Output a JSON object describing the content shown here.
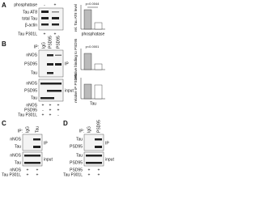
{
  "panels": {
    "a": {
      "label": "A",
      "treatment": "phosphatase",
      "treatment_values": [
        "-",
        "+"
      ],
      "rows": [
        "Tau AT8",
        "total Tau",
        "β-actin"
      ],
      "footer": "Tau P301L",
      "footer_values": [
        "+",
        "+"
      ],
      "chart": {
        "y_label": "rel. Tau AT8 level",
        "p_value": "p=0.0044",
        "x_label": "phosphatase"
      }
    },
    "b": {
      "label": "B",
      "ip_prefix": "IP:",
      "columns": [
        "IgG",
        "PSD95",
        "PSD95"
      ],
      "ip_rows": [
        "nNOS",
        "PSD95",
        "Tau"
      ],
      "ip_tag": "IP",
      "input_rows": [
        "nNOS",
        "PSD95",
        "Tau"
      ],
      "input_tag": "input",
      "footer": [
        {
          "name": "nNOS",
          "values": [
            "+",
            "+",
            "+"
          ]
        },
        {
          "name": "PSD95",
          "values": [
            "-",
            "+",
            "+"
          ]
        },
        {
          "name": "Tau P301L",
          "values": [
            "+",
            "+",
            "-"
          ]
        }
      ],
      "chart1": {
        "y_label": "relative binding to PSD95",
        "p_value": "p<0.0001"
      },
      "chart2": {
        "y_label": "relative IP PSD95",
        "x_label": "Tau"
      }
    },
    "c": {
      "label": "C",
      "ip_prefix": "IP:",
      "columns": [
        "IgG",
        "Tau"
      ],
      "ip_rows": [
        "nNOS",
        "Tau"
      ],
      "ip_tag": "IP",
      "input_rows": [
        "nNOS",
        "Tau"
      ],
      "input_tag": "input",
      "footer": [
        {
          "name": "nNOS",
          "values": [
            "+",
            "+"
          ]
        },
        {
          "name": "Tau P301L",
          "values": [
            "+",
            "+"
          ]
        }
      ]
    },
    "d": {
      "label": "D",
      "ip_prefix": "IP:",
      "columns": [
        "IgG",
        "PSD95"
      ],
      "ip_rows": [
        "Tau",
        "PSD95"
      ],
      "ip_tag": "IP",
      "input_rows": [
        "Tau",
        "PSD95"
      ],
      "input_tag": "input",
      "footer": [
        {
          "name": "PSD95",
          "values": [
            "+",
            "+"
          ]
        },
        {
          "name": "Tau P301L",
          "values": [
            "+",
            "+"
          ]
        }
      ]
    }
  }
}
